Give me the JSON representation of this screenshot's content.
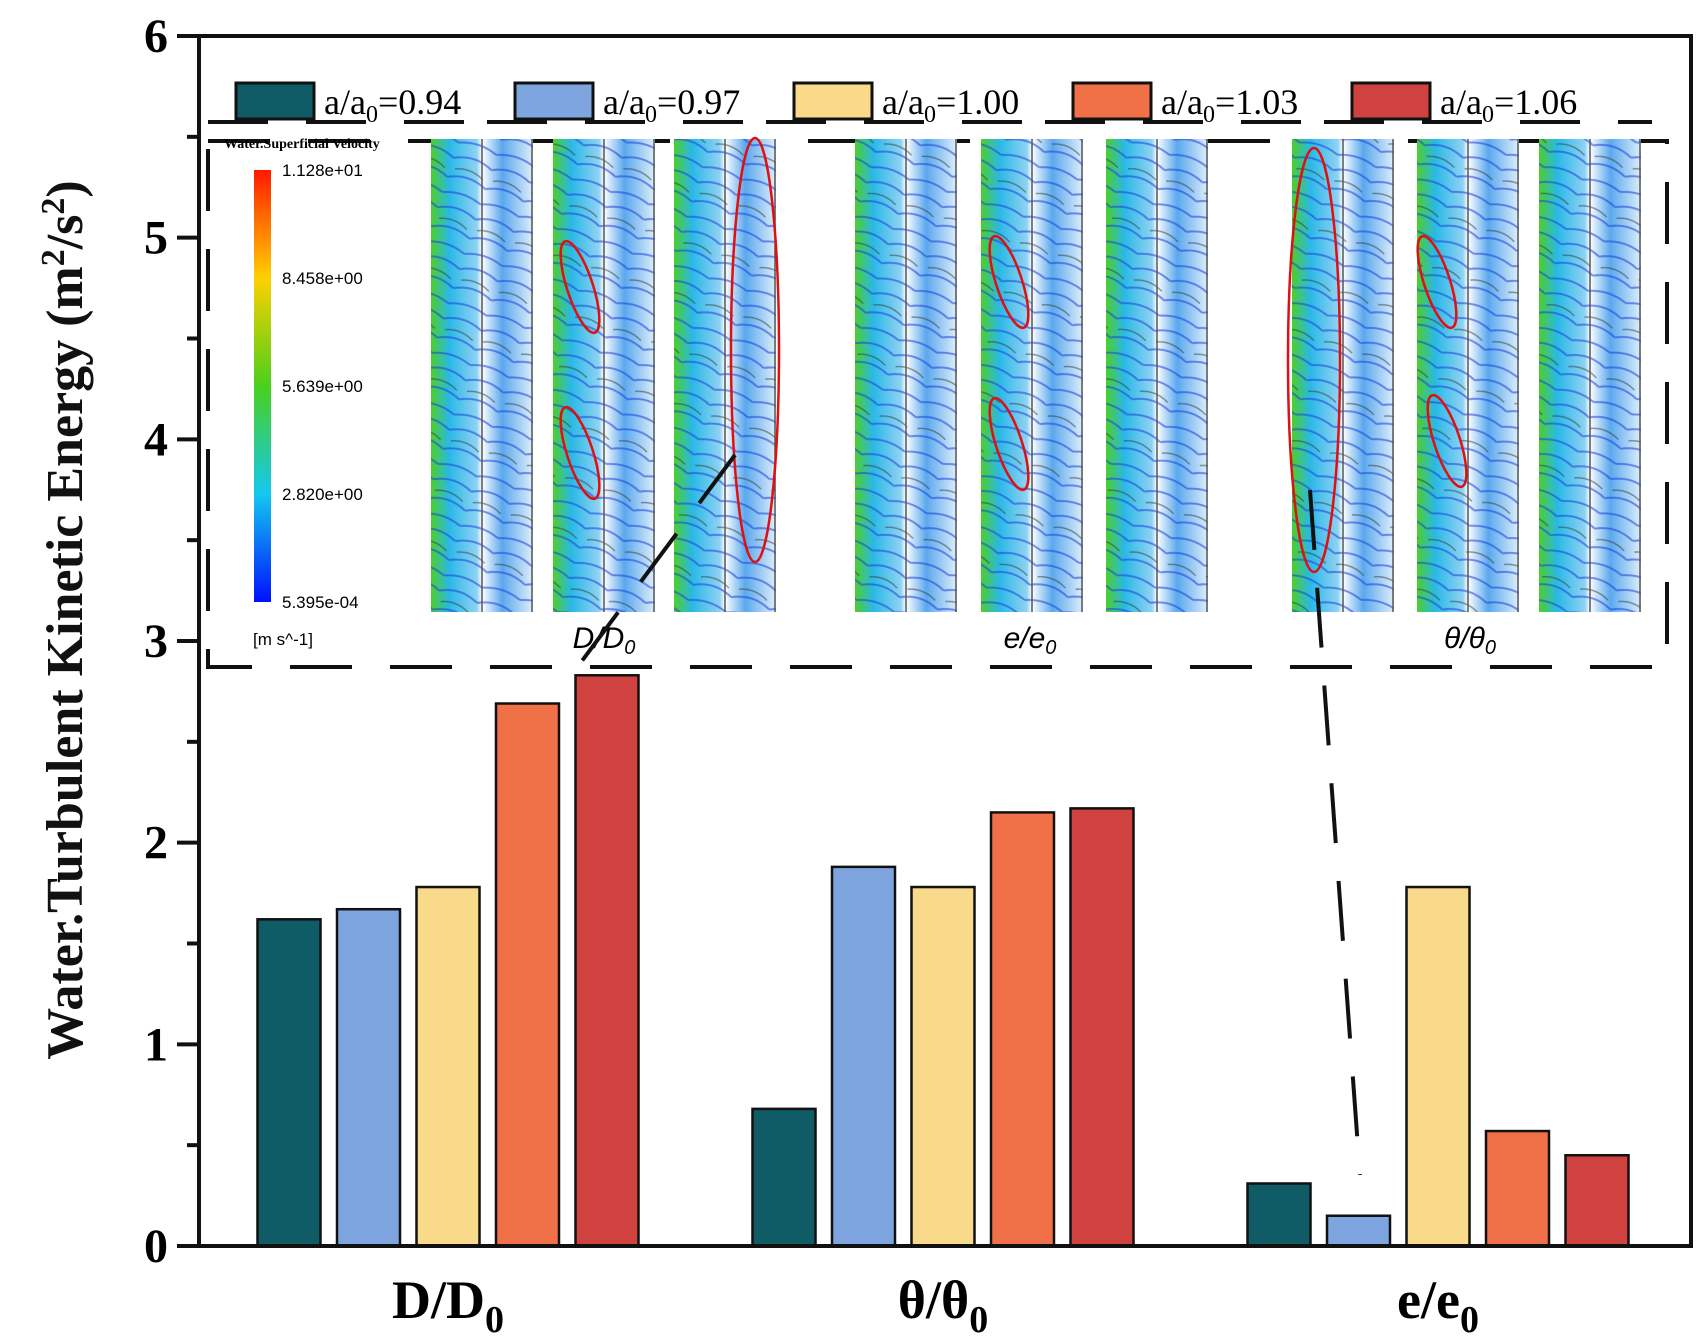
{
  "chart_data": {
    "type": "bar",
    "title": "",
    "xlabel": "",
    "ylabel": "Water.Turbulent Kinetic Energy (m2/s2)",
    "ylabel_parts": {
      "main": "Water.Turbulent Kinetic Energy (m",
      "sup1": "2",
      "mid": "/s",
      "sup2": "2",
      "end": ")"
    },
    "ylim": [
      0,
      6
    ],
    "yticks": [
      "0",
      "1",
      "2",
      "3",
      "4",
      "5",
      "6"
    ],
    "categories": [
      {
        "main": "D/D",
        "sub": "0"
      },
      {
        "main": "θ/θ",
        "sub": "0"
      },
      {
        "main": "e/e",
        "sub": "0"
      }
    ],
    "legend_placement": "top",
    "series": [
      {
        "name": "a/a0=0.94",
        "label_main": "a/a",
        "label_sub": "0",
        "label_val": "=0.94",
        "color": "#0f5c66",
        "values": [
          1.62,
          0.68,
          0.31
        ]
      },
      {
        "name": "a/a0=0.97",
        "label_main": "a/a",
        "label_sub": "0",
        "label_val": "=0.97",
        "color": "#7fa5e0",
        "values": [
          1.67,
          1.88,
          0.15
        ]
      },
      {
        "name": "a/a0=1.00",
        "label_main": "a/a",
        "label_sub": "0",
        "label_val": "=1.00",
        "color": "#f9d98a",
        "values": [
          1.78,
          1.78,
          1.78
        ]
      },
      {
        "name": "a/a0=1.03",
        "label_main": "a/a",
        "label_sub": "0",
        "label_val": "=1.03",
        "color": "#f07147",
        "values": [
          2.69,
          2.15,
          0.57
        ]
      },
      {
        "name": "a/a0=1.06",
        "label_main": "a/a",
        "label_sub": "0",
        "label_val": "=1.06",
        "color": "#d0423f",
        "values": [
          2.83,
          2.17,
          0.45
        ]
      }
    ]
  },
  "inset": {
    "colorbar_title": "Water.Superficial Velocity",
    "colorbar_labels": [
      "1.128e+01",
      "8.458e+00",
      "5.639e+00",
      "2.820e+00",
      "5.395e-04"
    ],
    "colorbar_unit": "[m s^-1]",
    "group_labels": [
      {
        "main": "D/D",
        "sub": "0"
      },
      {
        "main": "e/e",
        "sub": "0"
      },
      {
        "main": "θ/θ",
        "sub": "0"
      }
    ]
  }
}
